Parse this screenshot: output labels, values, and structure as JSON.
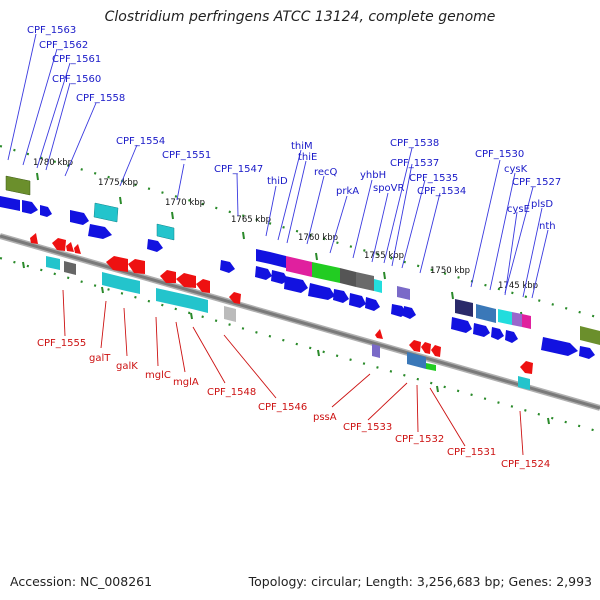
{
  "title": "Clostridium perfringens ATCC 13124, complete genome",
  "accession": "Accession: NC_008261",
  "summary": "Topology: circular; Length: 3,256,683 bp; Genes: 2,993",
  "colors": {
    "forward_label": "#1a1ac8",
    "reverse_label": "#cc1111",
    "backbone": "#777777",
    "tick": "#2a8a2a"
  },
  "ticks": [
    "1780 kbp",
    "1775 kbp",
    "1770 kbp",
    "1765 kbp",
    "1760 kbp",
    "1755 kbp",
    "1750 kbp",
    "1745 kbp"
  ],
  "forward_labels": [
    "CPF_1563",
    "CPF_1562",
    "CPF_1561",
    "CPF_1560",
    "CPF_1558",
    "CPF_1554",
    "CPF_1551",
    "CPF_1547",
    "thiD",
    "thiM",
    "thiE",
    "recQ",
    "prkA",
    "yhbH",
    "spoVR",
    "CPF_1538",
    "CPF_1537",
    "CPF_1535",
    "CPF_1534",
    "CPF_1530",
    "cysK",
    "CPF_1527",
    "cysE",
    "plsD",
    "nth"
  ],
  "reverse_labels": [
    "CPF_1555",
    "galT",
    "galK",
    "mglC",
    "mglA",
    "CPF_1548",
    "CPF_1546",
    "pssA",
    "CPF_1533",
    "CPF_1532",
    "CPF_1531",
    "CPF_1524"
  ]
}
